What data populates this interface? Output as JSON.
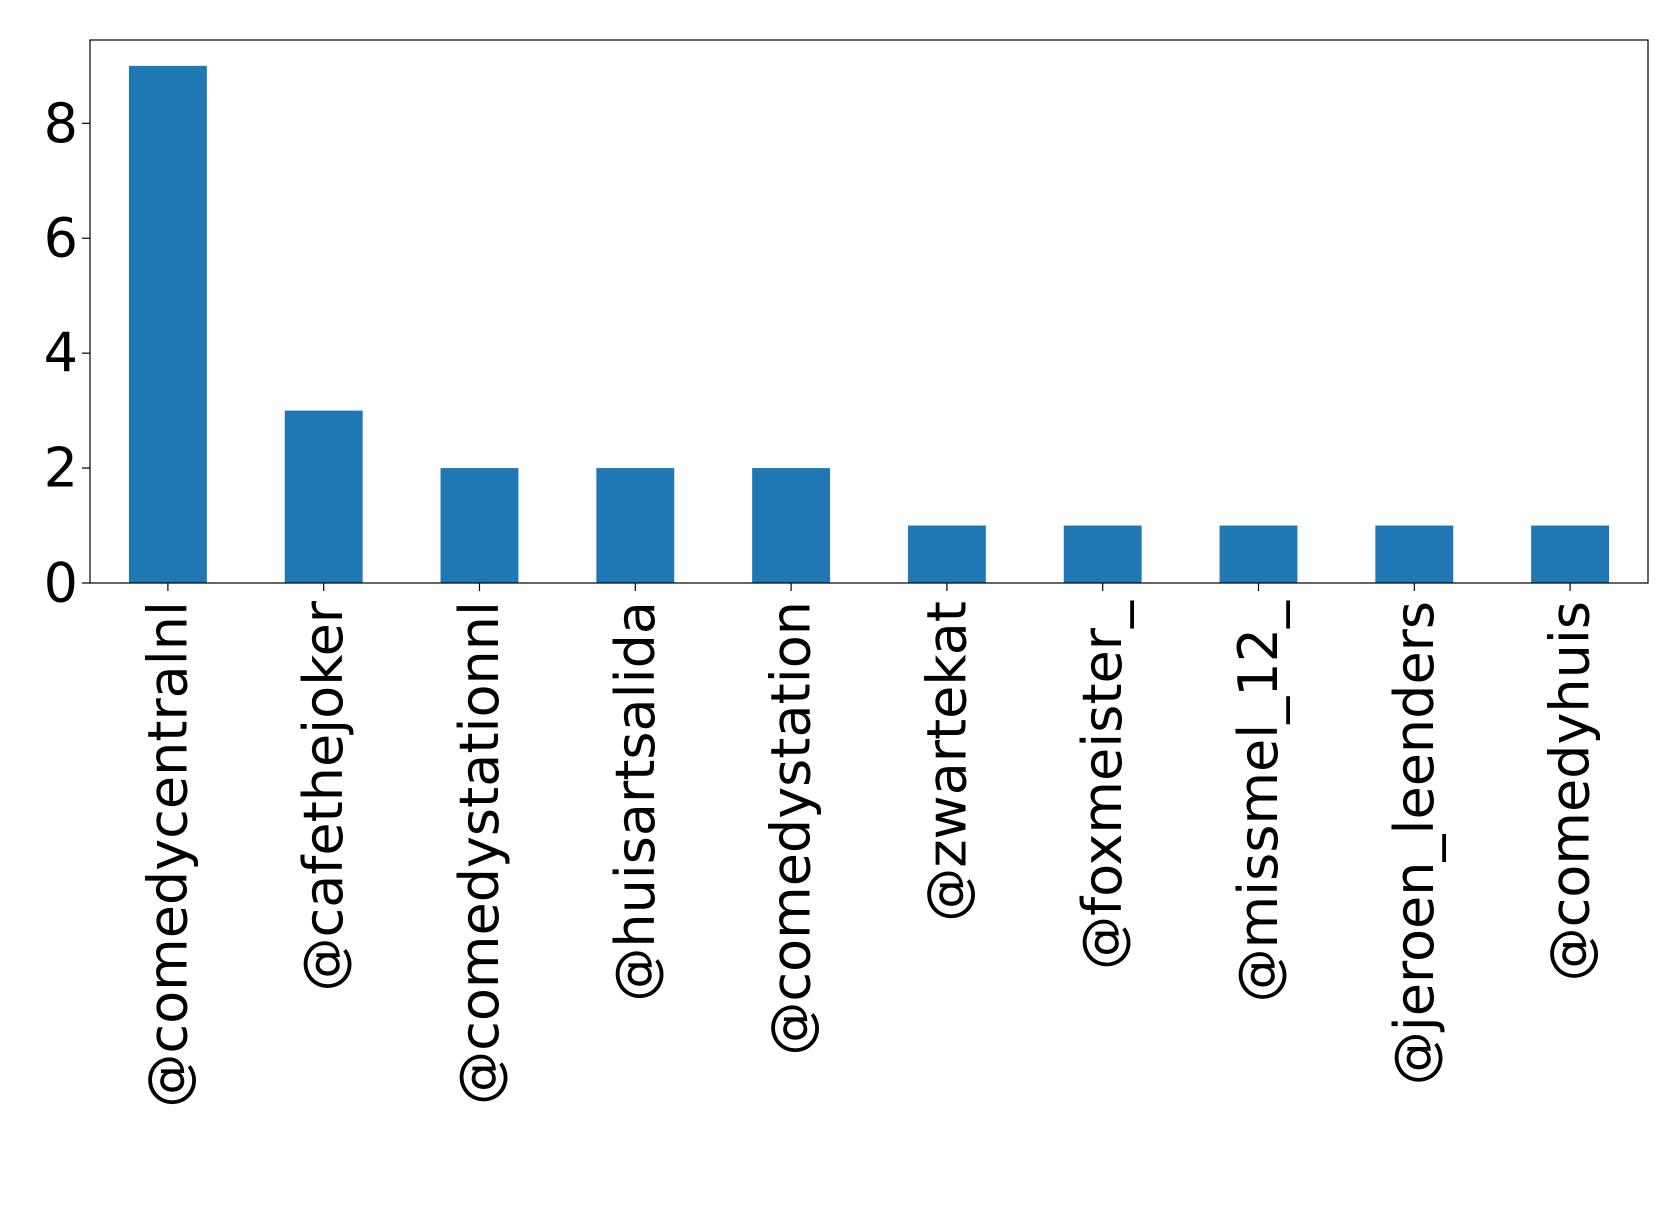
{
  "chart_data": {
    "type": "bar",
    "title": "",
    "xlabel": "",
    "ylabel": "",
    "categories": [
      "@comedycentralnl",
      "@cafethejoker",
      "@comedystationnl",
      "@huisartsalida",
      "@comedystation",
      "@zwartekat",
      "@foxmeister_",
      "@missmel_12_",
      "@jeroen_leenders",
      "@comedyhuis"
    ],
    "values": [
      9,
      3,
      2,
      2,
      2,
      1,
      1,
      1,
      1,
      1
    ],
    "yticks": [
      "0",
      "2",
      "4",
      "6",
      "8"
    ],
    "ylim": [
      0,
      9.45
    ],
    "grid": false,
    "legend": "none",
    "colors": {
      "bar": "#1f77b4",
      "axis": "#000000",
      "background": "#ffffff"
    }
  }
}
